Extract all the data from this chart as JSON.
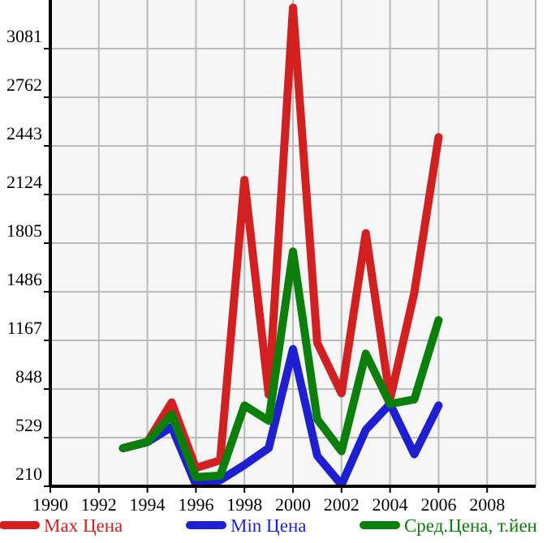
{
  "chart_data": {
    "type": "line",
    "x": [
      1993,
      1994,
      1995,
      1996,
      1997,
      1998,
      1999,
      2000,
      2001,
      2002,
      2003,
      2004,
      2005,
      2006
    ],
    "series": [
      {
        "name": "Max Цена",
        "color": "#d21f1f",
        "values": [
          460,
          500,
          760,
          330,
          380,
          2220,
          810,
          3350,
          1150,
          820,
          1870,
          780,
          1480,
          2500
        ]
      },
      {
        "name": "Min Цена",
        "color": "#1f1fd2",
        "values": [
          460,
          500,
          600,
          220,
          250,
          350,
          460,
          1110,
          410,
          220,
          580,
          750,
          420,
          740
        ]
      },
      {
        "name": "Сред.Цена, т.йен",
        "color": "#0a800a",
        "values": [
          460,
          500,
          680,
          270,
          280,
          740,
          640,
          1750,
          650,
          440,
          1080,
          750,
          780,
          1300
        ]
      }
    ],
    "xlim": [
      1990,
      2010
    ],
    "xticks": [
      1990,
      1992,
      1994,
      1996,
      1998,
      2000,
      2002,
      2004,
      2006,
      2008
    ],
    "ylim": [
      210,
      3400
    ],
    "yticks": [
      210,
      529,
      848,
      1167,
      1486,
      1805,
      2124,
      2443,
      2762,
      3081
    ],
    "grid": true,
    "legend": "bottom",
    "line_style": "solid"
  }
}
